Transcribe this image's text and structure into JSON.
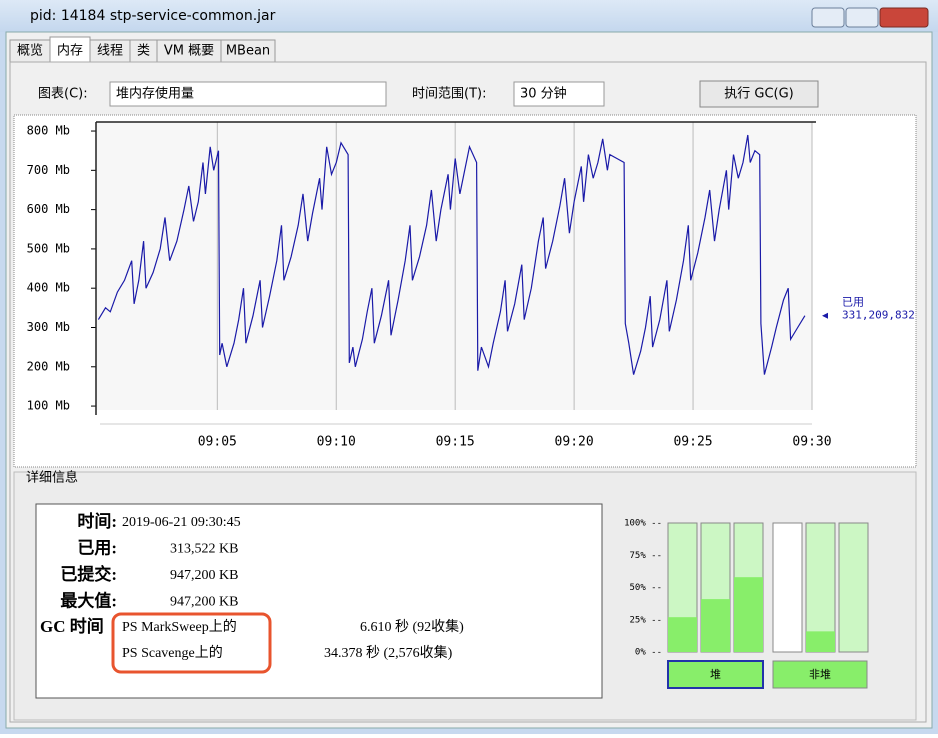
{
  "window": {
    "title": "pid: 14184 stp-service-common.jar"
  },
  "tabs": [
    "概览",
    "内存",
    "线程",
    "类",
    "VM 概要",
    "MBean"
  ],
  "controls": {
    "chart_label": "图表(C):",
    "chart_choice": "堆内存使用量",
    "range_label": "时间范围(T):",
    "range_choice": "30 分钟",
    "gc_button": "执行 GC(G)"
  },
  "chart_data": {
    "type": "line",
    "x": [
      540.0,
      540.3,
      540.5,
      540.8,
      541.1,
      541.4,
      541.5,
      541.7,
      541.9,
      542.0,
      542.3,
      542.6,
      542.8,
      543.0,
      543.3,
      543.6,
      543.8,
      544.0,
      544.2,
      544.4,
      544.5,
      544.7,
      544.85,
      545.05,
      545.1,
      545.2,
      545.4,
      545.7,
      545.9,
      546.1,
      546.2,
      546.5,
      546.8,
      546.9,
      547.2,
      547.5,
      547.7,
      547.8,
      548.1,
      548.4,
      548.6,
      548.8,
      549.0,
      549.3,
      549.4,
      549.6,
      549.8,
      550.0,
      550.2,
      550.5,
      550.55,
      550.7,
      550.8,
      551.1,
      551.3,
      551.5,
      551.6,
      551.9,
      552.2,
      552.3,
      552.6,
      552.9,
      553.1,
      553.2,
      553.5,
      553.8,
      554.0,
      554.2,
      554.4,
      554.7,
      554.8,
      555.0,
      555.2,
      555.4,
      555.6,
      555.9,
      555.95,
      556.1,
      556.4,
      556.6,
      556.9,
      557.1,
      557.2,
      557.5,
      557.8,
      557.9,
      558.2,
      558.5,
      558.7,
      558.8,
      559.1,
      559.4,
      559.6,
      559.8,
      560.0,
      560.3,
      560.4,
      560.6,
      560.8,
      561.0,
      561.2,
      561.4,
      561.5,
      561.8,
      562.1,
      562.15,
      562.3,
      562.5,
      562.8,
      563.0,
      563.2,
      563.3,
      563.6,
      563.9,
      564.0,
      564.3,
      564.6,
      564.8,
      564.9,
      565.2,
      565.5,
      565.7,
      565.9,
      566.1,
      566.4,
      566.5,
      566.7,
      566.9,
      567.1,
      567.3,
      567.4,
      567.6,
      567.8,
      567.85,
      568.0,
      568.3,
      568.5,
      568.8,
      569.0,
      569.1,
      569.4,
      569.7
    ],
    "series": [
      {
        "name": "已用",
        "color": "#1a1aa8",
        "values": [
          320,
          350,
          340,
          390,
          420,
          470,
          360,
          420,
          520,
          400,
          440,
          500,
          580,
          470,
          520,
          600,
          660,
          570,
          620,
          720,
          640,
          760,
          700,
          750,
          230,
          260,
          200,
          260,
          320,
          400,
          260,
          330,
          420,
          300,
          380,
          470,
          560,
          420,
          480,
          560,
          640,
          520,
          590,
          680,
          600,
          760,
          690,
          720,
          770,
          740,
          210,
          250,
          200,
          270,
          340,
          400,
          260,
          330,
          420,
          280,
          370,
          470,
          560,
          420,
          480,
          560,
          650,
          520,
          600,
          690,
          600,
          730,
          640,
          700,
          760,
          720,
          190,
          250,
          200,
          260,
          340,
          420,
          290,
          360,
          460,
          320,
          400,
          520,
          580,
          450,
          520,
          610,
          680,
          540,
          620,
          710,
          620,
          740,
          680,
          720,
          780,
          700,
          740,
          730,
          720,
          310,
          260,
          180,
          240,
          300,
          380,
          250,
          320,
          420,
          290,
          370,
          470,
          560,
          420,
          490,
          580,
          650,
          520,
          600,
          700,
          600,
          740,
          680,
          720,
          790,
          720,
          750,
          740,
          310,
          180,
          250,
          300,
          370,
          400,
          270,
          300,
          330
        ]
      }
    ],
    "current_value": "331,209,832",
    "xlim": [
      539.9,
      570
    ],
    "xticks": [
      {
        "value": 545,
        "label": "09:05"
      },
      {
        "value": 550,
        "label": "09:10"
      },
      {
        "value": 555,
        "label": "09:15"
      },
      {
        "value": 560,
        "label": "09:20"
      },
      {
        "value": 565,
        "label": "09:25"
      },
      {
        "value": 570,
        "label": "09:30"
      }
    ],
    "ylim": [
      90,
      823
    ],
    "yticks": [
      {
        "value": 100,
        "label": "100 Mb"
      },
      {
        "value": 200,
        "label": "200 Mb"
      },
      {
        "value": 300,
        "label": "300 Mb"
      },
      {
        "value": 400,
        "label": "400 Mb"
      },
      {
        "value": 500,
        "label": "500 Mb"
      },
      {
        "value": 600,
        "label": "600 Mb"
      },
      {
        "value": 700,
        "label": "700 Mb"
      },
      {
        "value": 800,
        "label": "800 Mb"
      }
    ],
    "grid": true
  },
  "details": {
    "title": "详细信息",
    "rows": [
      [
        "时间:",
        "2019-06-21 09:30:45"
      ],
      [
        "已用:",
        "313,522 KB"
      ],
      [
        "已提交:",
        "947,200 KB"
      ],
      [
        "最大值:",
        "947,200 KB"
      ]
    ],
    "gc_label": "GC 时间",
    "gc": [
      [
        "PS MarkSweep上的",
        "6.610 秒 (92收集)"
      ],
      [
        "PS Scavenge上的",
        "34.378 秒 (2,576收集)"
      ]
    ]
  },
  "gauges": {
    "ylim": [
      0,
      100
    ],
    "yticks": [
      {
        "value": 100,
        "label": "100% --"
      },
      {
        "value": 75,
        "label": "75% --"
      },
      {
        "value": 50,
        "label": "50% --"
      },
      {
        "value": 25,
        "label": "25% --"
      },
      {
        "value": 0,
        "label": "0% --"
      }
    ],
    "groups": [
      {
        "label": "堆",
        "used": [
          27,
          41,
          58
        ],
        "committed": [
          100,
          100,
          100
        ]
      },
      {
        "label": "非堆",
        "used": [
          0,
          16,
          0
        ],
        "committed": [
          0,
          100,
          100
        ]
      }
    ]
  }
}
